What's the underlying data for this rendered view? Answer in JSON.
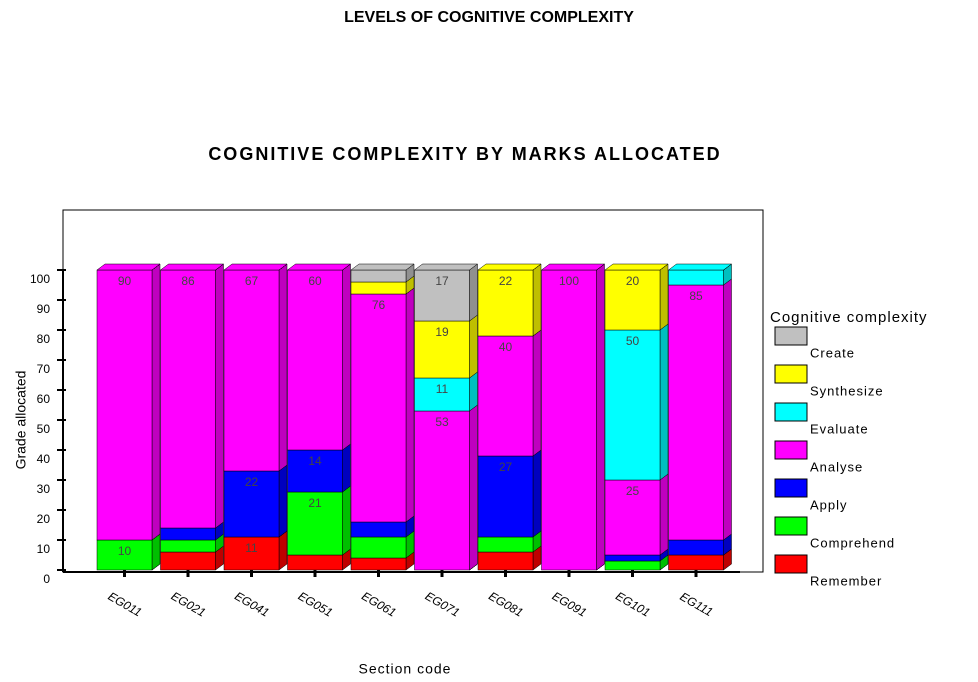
{
  "page_title": "LEVELS OF COGNITIVE COMPLEXITY",
  "chart_data": {
    "type": "stacked_bar_3d",
    "title": "COGNITIVE COMPLEXITY BY MARKS ALLOCATED",
    "x_label": "Section code",
    "y_label": "Grade allocated",
    "legend_title": "Cognitive complexity",
    "categories": [
      "EG011",
      "EG021",
      "EG041",
      "EG051",
      "EG061",
      "EG071",
      "EG081",
      "EG091",
      "EG101",
      "EG111"
    ],
    "series": [
      {
        "name": "Remember",
        "color": "#ff0000",
        "values": [
          0,
          6,
          11,
          5,
          4,
          0,
          6,
          0,
          0,
          5
        ]
      },
      {
        "name": "Comprehend",
        "color": "#00ff00",
        "values": [
          10,
          4,
          0,
          21,
          7,
          0,
          5,
          0,
          3,
          0
        ]
      },
      {
        "name": "Apply",
        "color": "#0000ff",
        "values": [
          0,
          4,
          22,
          14,
          5,
          0,
          27,
          0,
          2,
          5
        ]
      },
      {
        "name": "Analyse",
        "color": "#ff00ff",
        "values": [
          90,
          86,
          67,
          60,
          76,
          53,
          40,
          100,
          25,
          85
        ]
      },
      {
        "name": "Evaluate",
        "color": "#00ffff",
        "values": [
          0,
          0,
          0,
          0,
          0,
          11,
          0,
          0,
          50,
          5
        ]
      },
      {
        "name": "Synthesize",
        "color": "#ffff00",
        "values": [
          0,
          0,
          0,
          0,
          4,
          19,
          22,
          0,
          20,
          0
        ]
      },
      {
        "name": "Create",
        "color": "#c0c0c0",
        "values": [
          0,
          0,
          0,
          0,
          4,
          17,
          0,
          0,
          0,
          0
        ]
      }
    ],
    "ylim": [
      0,
      100
    ],
    "yticks": [
      0,
      10,
      20,
      30,
      40,
      50,
      60,
      70,
      80,
      90,
      100
    ]
  }
}
